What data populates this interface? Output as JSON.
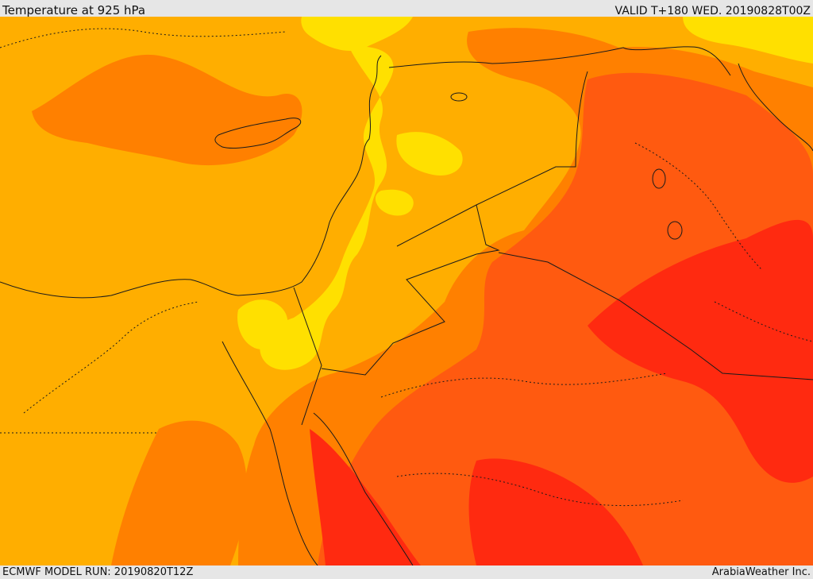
{
  "header": {
    "title": "Temperature at 925 hPa",
    "valid": "VALID T+180 WED. 20190828T00Z"
  },
  "footer": {
    "model_run": "ECMWF MODEL RUN: 20190820T12Z",
    "credit": "ArabiaWeather Inc."
  },
  "colors": {
    "band_yellow": "#ffe000",
    "band_amber": "#ffae00",
    "band_orange": "#ff8000",
    "band_darkorange": "#ff5a10",
    "band_red": "#ff2a10",
    "border": "#1a1a1a"
  }
}
